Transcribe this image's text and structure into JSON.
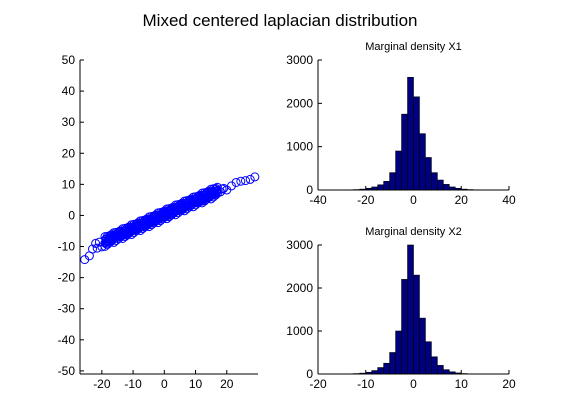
{
  "figure_title": "Mixed centered  laplacian distribution",
  "chart_data": [
    {
      "type": "scatter",
      "title": "",
      "xlabel": "",
      "ylabel": "",
      "xlim": [
        -27,
        30
      ],
      "ylim": [
        -51,
        50
      ],
      "xticks": [
        "-20",
        "-10",
        "0",
        "10",
        "20"
      ],
      "yticks": [
        "50",
        "40",
        "30",
        "20",
        "10",
        "0",
        "-10",
        "-20",
        "-30",
        "-40",
        "-50"
      ],
      "marker": "circle",
      "color": "#0000ff",
      "trend": {
        "slope": 0.45,
        "intercept": 0
      },
      "points": [
        [
          -25.5,
          -14.2
        ],
        [
          -24.0,
          -13.0
        ],
        [
          -23.0,
          -10.8
        ],
        [
          -21.5,
          -10.5
        ],
        [
          -20.8,
          -8.6
        ],
        [
          -20.0,
          -10.1
        ],
        [
          -19.0,
          -8.9
        ],
        [
          -18.2,
          -8.4
        ],
        [
          -17.5,
          -7.5
        ],
        [
          -16.8,
          -7.9
        ],
        [
          -16.0,
          -7.0
        ],
        [
          -15.2,
          -6.6
        ],
        [
          -14.5,
          -6.9
        ],
        [
          -13.8,
          -6.0
        ],
        [
          -13.0,
          -5.6
        ],
        [
          -12.3,
          -5.9
        ],
        [
          -11.5,
          -4.9
        ],
        [
          -10.8,
          -5.2
        ],
        [
          -10.0,
          -4.3
        ],
        [
          -9.3,
          -4.6
        ],
        [
          -8.5,
          -3.6
        ],
        [
          -7.8,
          -3.9
        ],
        [
          -7.0,
          -3.0
        ],
        [
          -6.2,
          -3.2
        ],
        [
          -5.5,
          -2.3
        ],
        [
          -4.8,
          -2.6
        ],
        [
          -4.0,
          -1.6
        ],
        [
          -3.2,
          -1.9
        ],
        [
          -2.5,
          -1.0
        ],
        [
          -1.8,
          -1.3
        ],
        [
          -1.0,
          -0.3
        ],
        [
          -0.3,
          -0.6
        ],
        [
          0.5,
          0.3
        ],
        [
          1.2,
          0.0
        ],
        [
          2.0,
          1.1
        ],
        [
          2.7,
          0.8
        ],
        [
          3.5,
          1.8
        ],
        [
          4.2,
          1.5
        ],
        [
          5.0,
          2.4
        ],
        [
          5.7,
          2.2
        ],
        [
          6.5,
          3.1
        ],
        [
          7.2,
          2.9
        ],
        [
          8.0,
          3.8
        ],
        [
          8.8,
          3.5
        ],
        [
          9.5,
          4.5
        ],
        [
          10.3,
          4.2
        ],
        [
          11.0,
          5.2
        ],
        [
          11.8,
          4.9
        ],
        [
          12.5,
          5.8
        ],
        [
          13.2,
          5.6
        ],
        [
          14.0,
          6.6
        ],
        [
          14.8,
          6.2
        ],
        [
          15.5,
          7.3
        ],
        [
          16.3,
          6.9
        ],
        [
          17.0,
          8.0
        ],
        [
          18.0,
          7.6
        ],
        [
          19.0,
          8.7
        ],
        [
          20.0,
          8.2
        ],
        [
          21.5,
          9.5
        ],
        [
          23.0,
          10.6
        ],
        [
          24.5,
          11.0
        ],
        [
          26.0,
          11.2
        ],
        [
          27.5,
          11.6
        ],
        [
          29.0,
          12.4
        ],
        [
          -22.0,
          -9.0
        ],
        [
          -18.5,
          -9.2
        ],
        [
          -15.5,
          -6.1
        ],
        [
          -12.0,
          -6.3
        ],
        [
          -9.0,
          -3.5
        ],
        [
          -6.5,
          -3.7
        ],
        [
          -3.5,
          -1.1
        ],
        [
          -0.5,
          0.4
        ],
        [
          1.5,
          -0.4
        ],
        [
          3.0,
          1.9
        ],
        [
          6.0,
          2.0
        ],
        [
          9.0,
          4.7
        ],
        [
          12.0,
          4.6
        ],
        [
          15.0,
          7.4
        ],
        [
          18.5,
          8.5
        ]
      ]
    },
    {
      "type": "bar",
      "title": "Marginal density X1",
      "xlabel": "",
      "ylabel": "",
      "xlim": [
        -40,
        40
      ],
      "ylim": [
        0,
        3000
      ],
      "xticks": [
        "-40",
        "-20",
        "0",
        "20",
        "40"
      ],
      "yticks": [
        "3000",
        "2000",
        "1000",
        "0"
      ],
      "bin_width": 2.5,
      "bin_centers": [
        -26.25,
        -23.75,
        -21.25,
        -18.75,
        -16.25,
        -13.75,
        -11.25,
        -8.75,
        -6.25,
        -3.75,
        -1.25,
        1.25,
        3.75,
        6.25,
        8.75,
        11.25,
        13.75,
        16.25,
        18.75,
        21.25,
        23.75,
        26.25,
        28.75
      ],
      "values": [
        5,
        10,
        20,
        40,
        70,
        120,
        200,
        400,
        900,
        1750,
        2600,
        2150,
        1300,
        750,
        400,
        230,
        130,
        70,
        40,
        20,
        10,
        5,
        3
      ]
    },
    {
      "type": "bar",
      "title": "Marginal density X2",
      "xlabel": "",
      "ylabel": "",
      "xlim": [
        -20,
        20
      ],
      "ylim": [
        0,
        3000
      ],
      "xticks": [
        "-20",
        "-10",
        "0",
        "10",
        "20"
      ],
      "yticks": [
        "3000",
        "2000",
        "1000",
        "0"
      ],
      "bin_width": 1.25,
      "bin_centers": [
        -13.125,
        -11.875,
        -10.625,
        -9.375,
        -8.125,
        -6.875,
        -5.625,
        -4.375,
        -3.125,
        -1.875,
        -0.625,
        0.625,
        1.875,
        3.125,
        4.375,
        5.625,
        6.875,
        8.125,
        9.375,
        10.625,
        11.875,
        13.125
      ],
      "values": [
        5,
        10,
        20,
        40,
        80,
        150,
        250,
        500,
        1000,
        2200,
        3000,
        2300,
        1300,
        750,
        400,
        200,
        100,
        50,
        25,
        10,
        5,
        3
      ]
    }
  ]
}
